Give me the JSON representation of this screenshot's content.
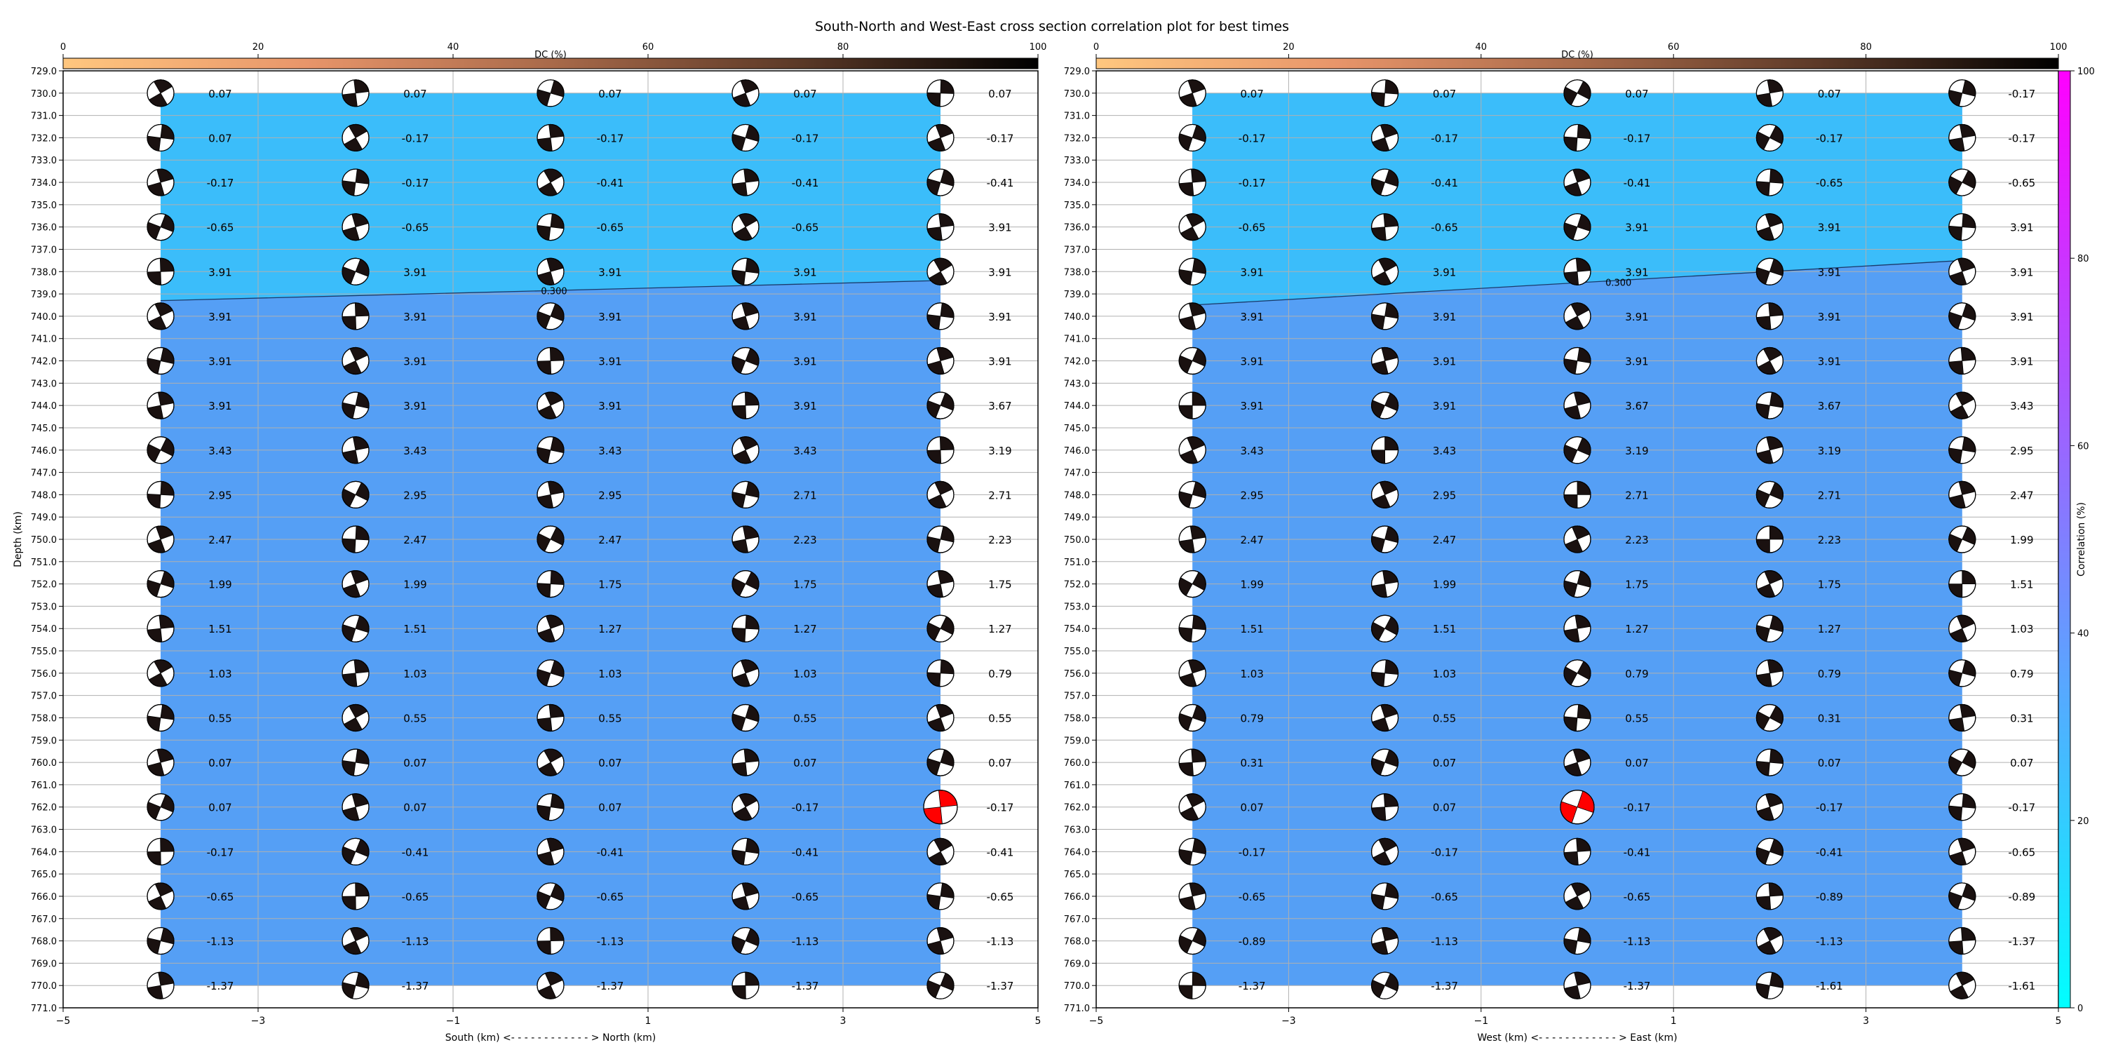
{
  "figure": {
    "title": "South-North and West-East cross section correlation plot for best times"
  },
  "colors": {
    "region_upper": "#3bbdfa",
    "region_lower": "#559ff5",
    "beachball_dark": "#1a1110",
    "beachball_best": "#ff0000",
    "grid": "#b0b0b0",
    "contour": "#1a3a6a"
  },
  "dc_colorbar": {
    "label": "DC (%)",
    "ticks": [
      0,
      20,
      40,
      60,
      80,
      100
    ],
    "colormap": "copper_r",
    "position": "top"
  },
  "correlation_colorbar": {
    "label": "Correlation (%)",
    "ticks": [
      0,
      20,
      40,
      60,
      80,
      100
    ],
    "colormap": "cool",
    "position": "right"
  },
  "chart_data": [
    {
      "type": "heatmap",
      "panel": "south-north",
      "title": "",
      "xlabel": "South (km) <- - - - - - - - - - - - > North (km)",
      "ylabel": "Depth (km)",
      "xlim": [
        -5,
        5
      ],
      "ylim": [
        771,
        729
      ],
      "xticks": [
        -5,
        -3,
        -1,
        1,
        3,
        5
      ],
      "yticks_step": 1,
      "grid": true,
      "x_positions": [
        -4,
        -2,
        0,
        2,
        4
      ],
      "depths": [
        730,
        732,
        734,
        736,
        738,
        740,
        742,
        744,
        746,
        748,
        750,
        752,
        754,
        756,
        758,
        760,
        762,
        764,
        766,
        768,
        770
      ],
      "time_labels": [
        [
          "0.07",
          "0.07",
          "0.07",
          "0.07",
          "0.07"
        ],
        [
          "0.07",
          "-0.17",
          "-0.17",
          "-0.17",
          "-0.17"
        ],
        [
          "-0.17",
          "-0.17",
          "-0.41",
          "-0.41",
          "-0.41"
        ],
        [
          "-0.65",
          "-0.65",
          "-0.65",
          "-0.65",
          "3.91"
        ],
        [
          "3.91",
          "3.91",
          "3.91",
          "3.91",
          "3.91"
        ],
        [
          "3.91",
          "3.91",
          "3.91",
          "3.91",
          "3.91"
        ],
        [
          "3.91",
          "3.91",
          "3.91",
          "3.91",
          "3.91"
        ],
        [
          "3.91",
          "3.91",
          "3.91",
          "3.91",
          "3.67"
        ],
        [
          "3.43",
          "3.43",
          "3.43",
          "3.43",
          "3.19"
        ],
        [
          "2.95",
          "2.95",
          "2.95",
          "2.71",
          "2.71"
        ],
        [
          "2.47",
          "2.47",
          "2.47",
          "2.23",
          "2.23"
        ],
        [
          "1.99",
          "1.99",
          "1.75",
          "1.75",
          "1.75"
        ],
        [
          "1.51",
          "1.51",
          "1.27",
          "1.27",
          "1.27"
        ],
        [
          "1.03",
          "1.03",
          "1.03",
          "1.03",
          "0.79"
        ],
        [
          "0.55",
          "0.55",
          "0.55",
          "0.55",
          "0.55"
        ],
        [
          "0.07",
          "0.07",
          "0.07",
          "0.07",
          "0.07"
        ],
        [
          "0.07",
          "0.07",
          "0.07",
          "-0.17",
          "-0.17"
        ],
        [
          "-0.17",
          "-0.41",
          "-0.41",
          "-0.41",
          "-0.41"
        ],
        [
          "-0.65",
          "-0.65",
          "-0.65",
          "-0.65",
          "-0.65"
        ],
        [
          "-1.13",
          "-1.13",
          "-1.13",
          "-1.13",
          "-1.13"
        ],
        [
          "-1.37",
          "-1.37",
          "-1.37",
          "-1.37",
          "-1.37"
        ]
      ],
      "best_solution": {
        "x": 4,
        "depth": 762
      },
      "contour": {
        "label": "0.300",
        "points": [
          [
            -4,
            739.3
          ],
          [
            4,
            738.4
          ]
        ]
      },
      "correlation_regions": [
        {
          "depth_range": [
            730,
            739
          ],
          "correlation_percent": 18
        },
        {
          "depth_range": [
            739,
            770
          ],
          "correlation_percent": 35
        }
      ]
    },
    {
      "type": "heatmap",
      "panel": "west-east",
      "title": "",
      "xlabel": "West (km) <- - - - - - - - - - - - > East (km)",
      "ylabel": "",
      "xlim": [
        -5,
        5
      ],
      "ylim": [
        771,
        729
      ],
      "xticks": [
        -5,
        -3,
        -1,
        1,
        3,
        5
      ],
      "yticks_step": 1,
      "grid": true,
      "x_positions": [
        -4,
        -2,
        0,
        2,
        4
      ],
      "depths": [
        730,
        732,
        734,
        736,
        738,
        740,
        742,
        744,
        746,
        748,
        750,
        752,
        754,
        756,
        758,
        760,
        762,
        764,
        766,
        768,
        770
      ],
      "time_labels": [
        [
          "0.07",
          "0.07",
          "0.07",
          "0.07",
          "-0.17"
        ],
        [
          "-0.17",
          "-0.17",
          "-0.17",
          "-0.17",
          "-0.17"
        ],
        [
          "-0.17",
          "-0.41",
          "-0.41",
          "-0.65",
          "-0.65"
        ],
        [
          "-0.65",
          "-0.65",
          "3.91",
          "3.91",
          "3.91"
        ],
        [
          "3.91",
          "3.91",
          "3.91",
          "3.91",
          "3.91"
        ],
        [
          "3.91",
          "3.91",
          "3.91",
          "3.91",
          "3.91"
        ],
        [
          "3.91",
          "3.91",
          "3.91",
          "3.91",
          "3.91"
        ],
        [
          "3.91",
          "3.91",
          "3.67",
          "3.67",
          "3.43"
        ],
        [
          "3.43",
          "3.43",
          "3.19",
          "3.19",
          "2.95"
        ],
        [
          "2.95",
          "2.95",
          "2.71",
          "2.71",
          "2.47"
        ],
        [
          "2.47",
          "2.47",
          "2.23",
          "2.23",
          "1.99"
        ],
        [
          "1.99",
          "1.99",
          "1.75",
          "1.75",
          "1.51"
        ],
        [
          "1.51",
          "1.51",
          "1.27",
          "1.27",
          "1.03"
        ],
        [
          "1.03",
          "1.03",
          "0.79",
          "0.79",
          "0.79"
        ],
        [
          "0.79",
          "0.55",
          "0.55",
          "0.31",
          "0.31"
        ],
        [
          "0.31",
          "0.07",
          "0.07",
          "0.07",
          "0.07"
        ],
        [
          "0.07",
          "0.07",
          "-0.17",
          "-0.17",
          "-0.17"
        ],
        [
          "-0.17",
          "-0.17",
          "-0.41",
          "-0.41",
          "-0.65"
        ],
        [
          "-0.65",
          "-0.65",
          "-0.65",
          "-0.89",
          "-0.89"
        ],
        [
          "-0.89",
          "-1.13",
          "-1.13",
          "-1.13",
          "-1.37"
        ],
        [
          "-1.37",
          "-1.37",
          "-1.37",
          "-1.61",
          "-1.61"
        ]
      ],
      "best_solution": {
        "x": 0,
        "depth": 762
      },
      "contour": {
        "label": "0.300",
        "points": [
          [
            -4,
            739.5
          ],
          [
            4,
            737.5
          ]
        ]
      },
      "correlation_regions": [
        {
          "depth_range": [
            730,
            739
          ],
          "correlation_percent": 18
        },
        {
          "depth_range": [
            739,
            770
          ],
          "correlation_percent": 35
        }
      ]
    }
  ]
}
